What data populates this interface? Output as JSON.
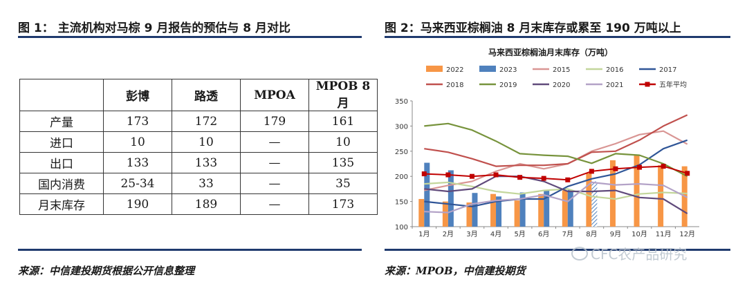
{
  "left": {
    "figure_title": "图 1： 主流机构对马棕 9 月报告的预估与 8 月对比",
    "source": "来源：中信建投期货根据公开信息整理",
    "table": {
      "headers": [
        "",
        "彭博",
        "路透",
        "MPOA",
        "MPOB 8月"
      ],
      "rows": [
        [
          "产量",
          "173",
          "172",
          "179",
          "161"
        ],
        [
          "进口",
          "10",
          "10",
          "—",
          "10"
        ],
        [
          "出口",
          "133",
          "133",
          "—",
          "135"
        ],
        [
          "国内消费",
          "25-34",
          "33",
          "—",
          "35"
        ],
        [
          "月末库存",
          "190",
          "189",
          "—",
          "173"
        ]
      ]
    }
  },
  "right": {
    "figure_title": "图 2：马来西亚棕榈油 8 月末库存或累至 190 万吨以上",
    "source": "来源：MPOB，中信建投期货",
    "watermark": "CFC农产品研究"
  },
  "chart_data": {
    "type": "bar",
    "title": "马来西亚棕榈油月末库存（万吨）",
    "categories": [
      "1月",
      "2月",
      "3月",
      "4月",
      "5月",
      "6月",
      "7月",
      "8月",
      "9月",
      "10月",
      "11月",
      "12月"
    ],
    "ylim": [
      100,
      350
    ],
    "yticks": [
      100,
      150,
      200,
      250,
      300,
      350
    ],
    "grid": false,
    "legend_position": "top",
    "bar_series": [
      {
        "name": "2022",
        "color": "#f79646",
        "values": [
          155,
          150,
          148,
          165,
          152,
          165,
          172,
          206,
          232,
          242,
          222,
          220
        ]
      },
      {
        "name": "2023",
        "color": "#4f81bd",
        "values": [
          227,
          212,
          167,
          160,
          168,
          172,
          173,
          190
        ]
      }
    ],
    "bar_note": "2023年8月为预估值（斜线填充）",
    "line_series": [
      {
        "name": "2015",
        "color": "#d99694",
        "values": [
          172,
          182,
          190,
          210,
          225,
          215,
          225,
          250,
          265,
          283,
          290,
          264
        ]
      },
      {
        "name": "2016",
        "color": "#c3d69b",
        "values": [
          185,
          188,
          180,
          170,
          165,
          172,
          175,
          160,
          155,
          165,
          168,
          166
        ]
      },
      {
        "name": "2017",
        "color": "#2f5597",
        "values": [
          150,
          145,
          140,
          150,
          155,
          155,
          180,
          195,
          205,
          223,
          255,
          272
        ]
      },
      {
        "name": "2018",
        "color": "#c0504d",
        "values": [
          255,
          248,
          235,
          220,
          222,
          222,
          225,
          248,
          250,
          272,
          300,
          322
        ]
      },
      {
        "name": "2019",
        "color": "#77933c",
        "values": [
          300,
          305,
          292,
          270,
          245,
          242,
          240,
          226,
          245,
          242,
          225,
          200
        ]
      },
      {
        "name": "2020",
        "color": "#604a7b",
        "values": [
          175,
          170,
          175,
          200,
          200,
          190,
          170,
          170,
          172,
          158,
          155,
          126
        ]
      },
      {
        "name": "2021",
        "color": "#b3a2c7",
        "values": [
          130,
          128,
          145,
          152,
          155,
          163,
          150,
          188,
          183,
          185,
          182,
          158
        ]
      },
      {
        "name": "五年平均",
        "color": "#c00000",
        "marker": "square",
        "values": [
          205,
          203,
          200,
          203,
          198,
          196,
          193,
          210,
          215,
          218,
          220,
          206
        ]
      }
    ]
  }
}
